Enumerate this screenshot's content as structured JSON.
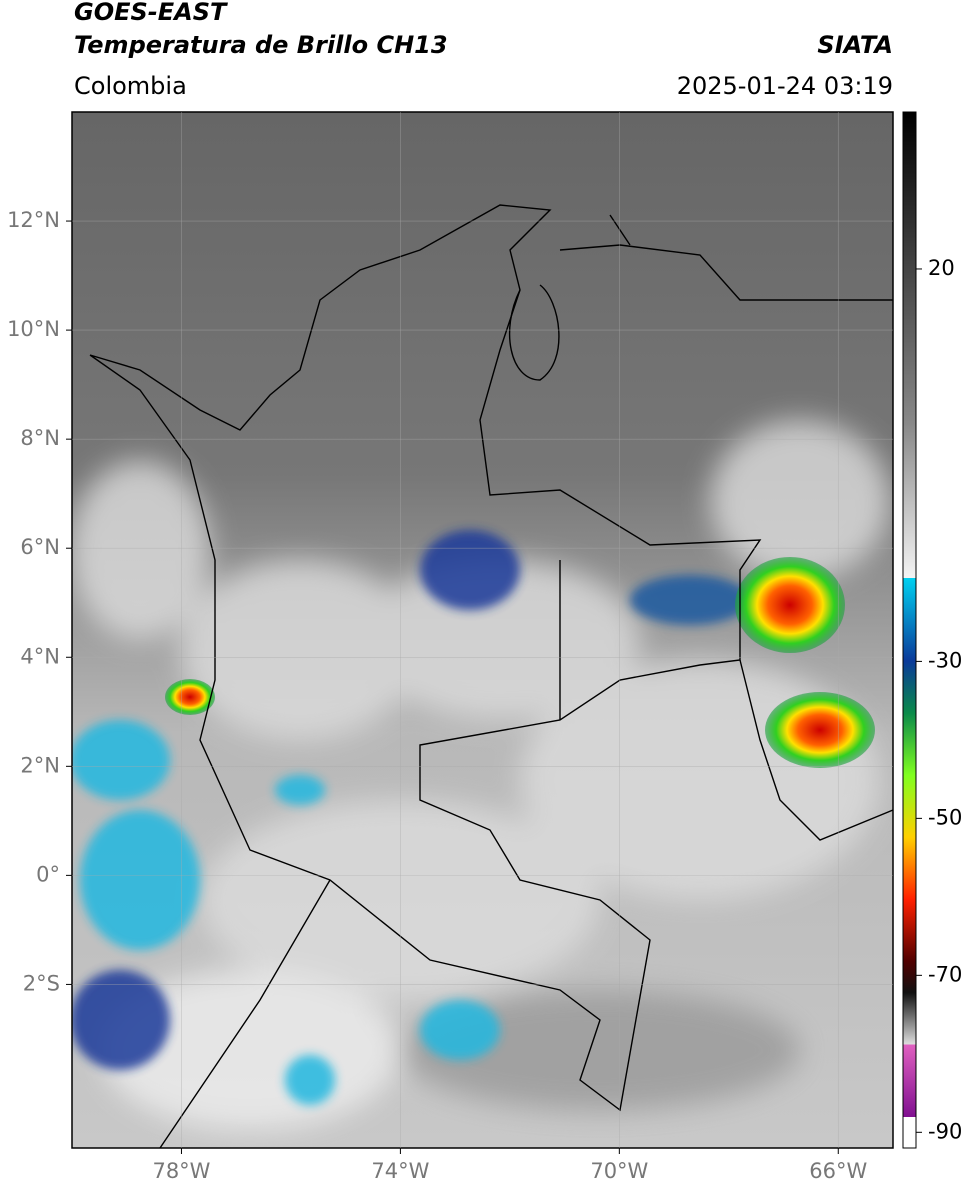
{
  "header": {
    "title": "GOES-EAST",
    "subtitle": "Temperatura de Brillo CH13",
    "source": "SIATA",
    "region": "Colombia",
    "datetime": "2025-01-24 03:19"
  },
  "map": {
    "lonlim": [
      -80,
      -65
    ],
    "latlim": [
      -5,
      14
    ],
    "lat_ticks": [
      {
        "value": 12,
        "label": "12°N"
      },
      {
        "value": 10,
        "label": "10°N"
      },
      {
        "value": 8,
        "label": "8°N"
      },
      {
        "value": 6,
        "label": "6°N"
      },
      {
        "value": 4,
        "label": "4°N"
      },
      {
        "value": 2,
        "label": "2°N"
      },
      {
        "value": 0,
        "label": "0°"
      },
      {
        "value": -2,
        "label": "2°S"
      }
    ],
    "lon_ticks": [
      {
        "value": -78,
        "label": "78°W"
      },
      {
        "value": -74,
        "label": "74°W"
      },
      {
        "value": -70,
        "label": "70°W"
      },
      {
        "value": -66,
        "label": "66°W"
      }
    ]
  },
  "colorbar": {
    "lim": [
      -92,
      40
    ],
    "ticks": [
      20,
      -30,
      -50,
      -70,
      -90
    ]
  }
}
